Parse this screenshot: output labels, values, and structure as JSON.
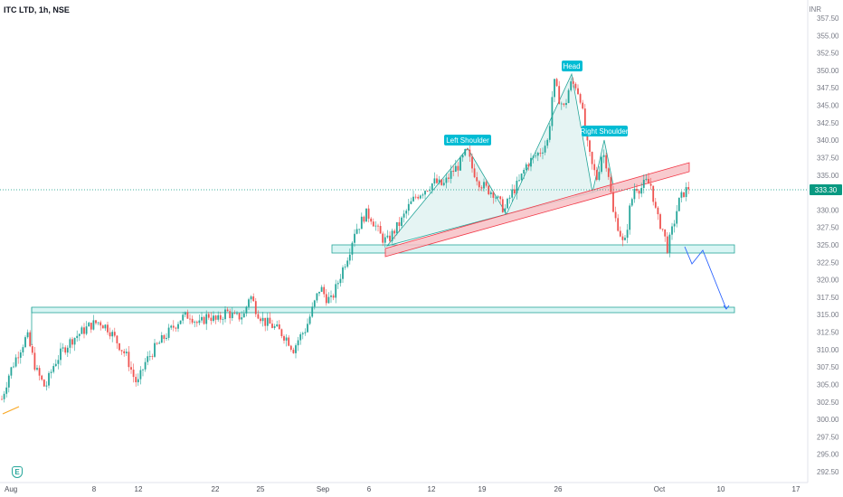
{
  "header": {
    "title": "ITC LTD, 1h, NSE",
    "currency": "INR"
  },
  "colors": {
    "up": "#26a69a",
    "down": "#ef5350",
    "accent": "#2962ff",
    "zone_fill": "#bfeeec",
    "zone_stroke": "#26a69a",
    "trend_fill": "#f7c1c6",
    "trend_stroke": "#f23645",
    "label_bg": "#00bcd4",
    "price_tag": "#089981"
  },
  "chart_data": {
    "type": "candlestick",
    "title": "ITC LTD, 1h, NSE",
    "y_unit": "INR",
    "ylim": [
      291.5,
      358.5
    ],
    "y_ticks": [
      292.5,
      295.0,
      297.5,
      300.0,
      302.5,
      305.0,
      307.5,
      310.0,
      312.5,
      315.0,
      317.5,
      320.0,
      322.5,
      325.0,
      327.5,
      330.0,
      332.5,
      335.0,
      337.5,
      340.0,
      342.5,
      345.0,
      347.5,
      350.0,
      352.5,
      355.0,
      357.5
    ],
    "x_ticks": [
      "Aug",
      "8",
      "12",
      "22",
      "25",
      "Sep",
      "6",
      "12",
      "19",
      "26",
      "Oct",
      "10",
      "17"
    ],
    "last_price": "333.30",
    "annotations": [
      "Left Shoulder",
      "Head",
      "Right Shoulder"
    ],
    "price_path": [
      [
        0,
        302.0
      ],
      [
        10,
        306.5
      ],
      [
        20,
        309.5
      ],
      [
        30,
        312.0
      ],
      [
        40,
        307.0
      ],
      [
        50,
        304.5
      ],
      [
        60,
        308.0
      ],
      [
        70,
        310.0
      ],
      [
        80,
        311.5
      ],
      [
        90,
        312.5
      ],
      [
        100,
        313.5
      ],
      [
        110,
        314.0
      ],
      [
        120,
        313.0
      ],
      [
        130,
        311.0
      ],
      [
        140,
        309.0
      ],
      [
        148,
        306.0
      ],
      [
        152,
        305.0
      ],
      [
        160,
        308.0
      ],
      [
        170,
        310.0
      ],
      [
        180,
        311.5
      ],
      [
        190,
        313.0
      ],
      [
        200,
        314.5
      ],
      [
        210,
        315.0
      ],
      [
        220,
        313.5
      ],
      [
        230,
        315.0
      ],
      [
        240,
        314.0
      ],
      [
        250,
        315.5
      ],
      [
        260,
        314.5
      ],
      [
        270,
        315.0
      ],
      [
        276,
        318.0
      ],
      [
        284,
        315.5
      ],
      [
        292,
        314.0
      ],
      [
        300,
        313.5
      ],
      [
        310,
        312.5
      ],
      [
        318,
        311.5
      ],
      [
        324,
        310.0
      ],
      [
        330,
        311.5
      ],
      [
        338,
        313.0
      ],
      [
        346,
        316.0
      ],
      [
        354,
        319.0
      ],
      [
        360,
        317.5
      ],
      [
        366,
        317.0
      ],
      [
        372,
        319.0
      ],
      [
        380,
        322.0
      ],
      [
        386,
        324.0
      ],
      [
        392,
        327.0
      ],
      [
        398,
        328.0
      ],
      [
        404,
        329.5
      ],
      [
        410,
        329.0
      ],
      [
        416,
        327.5
      ],
      [
        422,
        326.0
      ],
      [
        428,
        325.5
      ],
      [
        436,
        327.0
      ],
      [
        444,
        328.5
      ],
      [
        452,
        330.5
      ],
      [
        460,
        332.0
      ],
      [
        470,
        333.0
      ],
      [
        480,
        334.0
      ],
      [
        490,
        333.5
      ],
      [
        500,
        335.5
      ],
      [
        508,
        336.5
      ],
      [
        516,
        338.5
      ],
      [
        522,
        336.0
      ],
      [
        530,
        334.0
      ],
      [
        538,
        333.0
      ],
      [
        546,
        332.5
      ],
      [
        552,
        331.0
      ],
      [
        558,
        330.0
      ],
      [
        566,
        332.5
      ],
      [
        574,
        334.0
      ],
      [
        582,
        336.5
      ],
      [
        590,
        337.5
      ],
      [
        598,
        338.5
      ],
      [
        606,
        340.0
      ],
      [
        612,
        348.5
      ],
      [
        618,
        346.0
      ],
      [
        624,
        344.5
      ],
      [
        630,
        348.0
      ],
      [
        636,
        348.0
      ],
      [
        642,
        346.0
      ],
      [
        648,
        340.0
      ],
      [
        654,
        336.5
      ],
      [
        660,
        334.5
      ],
      [
        666,
        338.5
      ],
      [
        672,
        336.0
      ],
      [
        678,
        329.5
      ],
      [
        684,
        327.5
      ],
      [
        690,
        324.5
      ],
      [
        696,
        330.0
      ],
      [
        702,
        333.5
      ],
      [
        708,
        333.0
      ],
      [
        714,
        334.0
      ],
      [
        720,
        333.5
      ],
      [
        726,
        329.0
      ],
      [
        732,
        327.5
      ],
      [
        738,
        324.5
      ],
      [
        744,
        327.5
      ],
      [
        750,
        331.0
      ],
      [
        756,
        332.5
      ],
      [
        762,
        333.3
      ]
    ]
  }
}
